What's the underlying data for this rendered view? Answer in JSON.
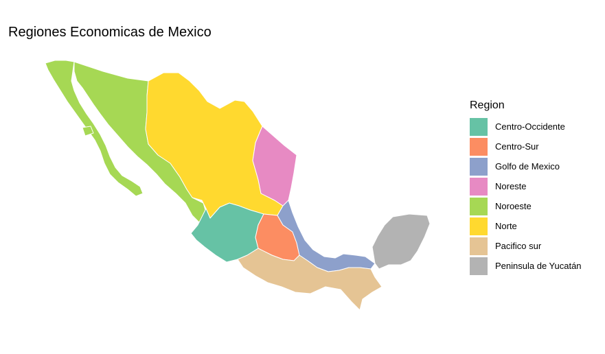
{
  "title": "Regiones Economicas de Mexico",
  "legend": {
    "title": "Region",
    "items": [
      {
        "label": "Centro-Occidente",
        "color": "#66C2A5"
      },
      {
        "label": "Centro-Sur",
        "color": "#FC8D62"
      },
      {
        "label": "Golfo de Mexico",
        "color": "#8DA0CB"
      },
      {
        "label": "Noreste",
        "color": "#E78AC3"
      },
      {
        "label": "Noroeste",
        "color": "#A6D854"
      },
      {
        "label": "Norte",
        "color": "#FFD92F"
      },
      {
        "label": "Pacifico sur",
        "color": "#E5C494"
      },
      {
        "label": "Peninsula de Yucatán",
        "color": "#B3B3B3"
      }
    ]
  },
  "map": {
    "border_color": "#ffffff",
    "regions": [
      {
        "name": "Noroeste",
        "color": "#A6D854"
      },
      {
        "name": "Norte",
        "color": "#FFD92F"
      },
      {
        "name": "Noreste",
        "color": "#E78AC3"
      },
      {
        "name": "Centro-Occidente",
        "color": "#66C2A5"
      },
      {
        "name": "Centro-Sur",
        "color": "#FC8D62"
      },
      {
        "name": "Golfo de Mexico",
        "color": "#8DA0CB"
      },
      {
        "name": "Pacifico sur",
        "color": "#E5C494"
      },
      {
        "name": "Peninsula de Yucatán",
        "color": "#B3B3B3"
      }
    ]
  }
}
